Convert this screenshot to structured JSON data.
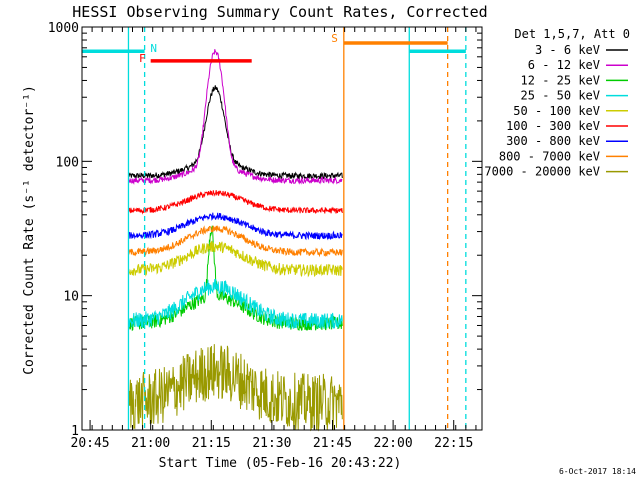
{
  "chart_data": {
    "type": "line",
    "title": "HESSI Observing Summary Count Rates, Corrected",
    "xlabel": "Start Time (05-Feb-16 20:43:22)",
    "ylabel": "Corrected Count Rate (s⁻¹ detector⁻¹)",
    "y_scale": "log",
    "ylim": [
      1,
      1000
    ],
    "xlim_minutes_after_2043": [
      0,
      99
    ],
    "x_ticks": [
      {
        "label": "20:45",
        "t": 2
      },
      {
        "label": "21:00",
        "t": 17
      },
      {
        "label": "21:15",
        "t": 32
      },
      {
        "label": "21:30",
        "t": 47
      },
      {
        "label": "21:45",
        "t": 62
      },
      {
        "label": "22:00",
        "t": 77
      },
      {
        "label": "22:15",
        "t": 92
      }
    ],
    "y_ticks": [
      {
        "label": "1",
        "v": 1
      },
      {
        "label": "10",
        "v": 10
      },
      {
        "label": "100",
        "v": 100
      },
      {
        "label": "1000",
        "v": 1000
      }
    ],
    "legend_title": "Det 1,5,7, Att 0",
    "legend_placement": "right",
    "series": [
      {
        "name": "3 - 6 keV",
        "color": "#000000",
        "base": 78,
        "peak": 250,
        "peak_t": 33,
        "width": 2.5,
        "bump": 1.3,
        "bump_w": 8,
        "noise": 0.05
      },
      {
        "name": "6 - 12 keV",
        "color": "#cc00cc",
        "base": 72,
        "peak": 560,
        "peak_t": 33,
        "width": 2.2,
        "bump": 1.3,
        "bump_w": 8,
        "noise": 0.05
      },
      {
        "name": "12 - 25 keV",
        "color": "#00cc00",
        "base": 6.2,
        "peak": 22,
        "peak_t": 32,
        "width": 0.8,
        "bump": 1.6,
        "bump_w": 9,
        "noise": 0.12
      },
      {
        "name": "25 - 50 keV",
        "color": "#00dddd",
        "base": 6.5,
        "peak": 0,
        "peak_t": 33,
        "width": 2,
        "bump": 1.8,
        "bump_w": 9,
        "noise": 0.14
      },
      {
        "name": "50 - 100 keV",
        "color": "#cccc00",
        "base": 15.5,
        "peak": 0,
        "peak_t": 33,
        "width": 2,
        "bump": 1.5,
        "bump_w": 9,
        "noise": 0.1
      },
      {
        "name": "100 - 300 keV",
        "color": "#ff0000",
        "base": 43,
        "peak": 0,
        "peak_t": 33,
        "width": 2,
        "bump": 1.35,
        "bump_w": 9,
        "noise": 0.05
      },
      {
        "name": "300 - 800 keV",
        "color": "#0000ff",
        "base": 28,
        "peak": 0,
        "peak_t": 33,
        "width": 2,
        "bump": 1.4,
        "bump_w": 9,
        "noise": 0.06
      },
      {
        "name": "800 - 7000 keV",
        "color": "#ff8000",
        "base": 21,
        "peak": 0,
        "peak_t": 33,
        "width": 2,
        "bump": 1.5,
        "bump_w": 9,
        "noise": 0.06
      },
      {
        "name": "7000 - 20000 keV",
        "color": "#999900",
        "base": 1.6,
        "peak": 0,
        "peak_t": 33,
        "width": 2,
        "bump": 1.7,
        "bump_w": 10,
        "noise": 0.5
      }
    ],
    "data_window_minutes": [
      11.5,
      64.5
    ],
    "markers": [
      {
        "label": "F",
        "color": "#ff0000",
        "t_start": 17,
        "t_end": 42,
        "level": 560
      },
      {
        "label": "N",
        "color": "#00dddd",
        "t_start": 0,
        "t_end": 15.5,
        "level": 660
      },
      {
        "label": "S",
        "color": "#ff8000",
        "t_start": 64.8,
        "t_end": 90.5,
        "level": 760
      },
      {
        "label": "",
        "color": "#00dddd",
        "t_start": 81,
        "t_end": 95,
        "level": 660
      }
    ],
    "vlines": [
      {
        "t": 11.5,
        "color": "#00dddd",
        "style": "solid"
      },
      {
        "t": 15.5,
        "color": "#00dddd",
        "style": "dashed"
      },
      {
        "t": 64.8,
        "color": "#ff8000",
        "style": "solid"
      },
      {
        "t": 81,
        "color": "#00dddd",
        "style": "solid"
      },
      {
        "t": 90.5,
        "color": "#ff8000",
        "style": "dashed"
      },
      {
        "t": 95,
        "color": "#00dddd",
        "style": "dashed"
      }
    ]
  },
  "footer_date": "6-Oct-2017 18:14"
}
